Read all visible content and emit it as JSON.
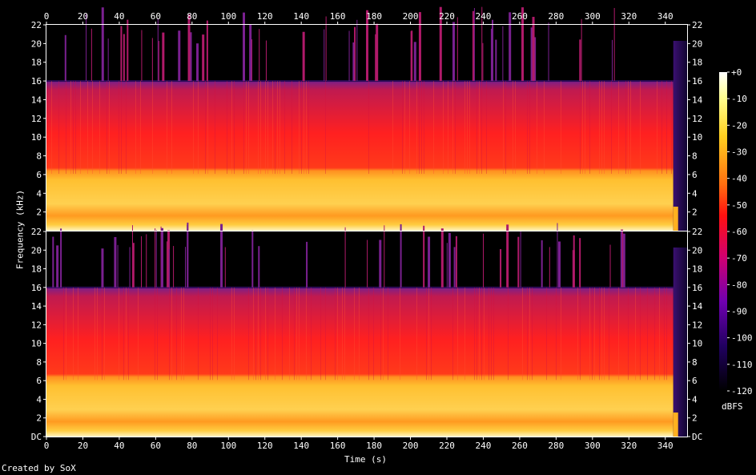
{
  "chart_data": {
    "type": "heatmap",
    "xlabel": "Time (s)",
    "ylabel": "Frequency (kHz)",
    "xlim": [
      0,
      352
    ],
    "x_ticks": [
      "0",
      "20",
      "40",
      "60",
      "80",
      "100",
      "120",
      "140",
      "160",
      "180",
      "200",
      "220",
      "240",
      "260",
      "280",
      "300",
      "320",
      "340"
    ],
    "x_tick_values": [
      0,
      20,
      40,
      60,
      80,
      100,
      120,
      140,
      160,
      180,
      200,
      220,
      240,
      260,
      280,
      300,
      320,
      340
    ],
    "channels": [
      {
        "ylim": [
          0,
          22
        ],
        "y_ticks": [
          "2",
          "4",
          "6",
          "8",
          "10",
          "12",
          "14",
          "16",
          "18",
          "20",
          "22"
        ],
        "y_tick_values": [
          2,
          4,
          6,
          8,
          10,
          12,
          14,
          16,
          18,
          20,
          22
        ],
        "lowpass_cutoff_khz": 16,
        "bright_band_khz": [
          0,
          6
        ]
      },
      {
        "ylim": [
          0,
          22
        ],
        "y_ticks": [
          "DC",
          "2",
          "4",
          "6",
          "8",
          "10",
          "12",
          "14",
          "16",
          "18",
          "20",
          "22"
        ],
        "y_tick_values": [
          0,
          2,
          4,
          6,
          8,
          10,
          12,
          14,
          16,
          18,
          20,
          22
        ],
        "lowpass_cutoff_khz": 16,
        "bright_band_khz": [
          0,
          6
        ]
      }
    ],
    "colorbar": {
      "label": "dBFS",
      "ticks": [
        "+0",
        "-10",
        "-20",
        "-30",
        "-40",
        "-50",
        "-60",
        "-70",
        "-80",
        "-90",
        "-100",
        "-110",
        "-120"
      ],
      "tick_values": [
        0,
        -10,
        -20,
        -30,
        -40,
        -50,
        -60,
        -70,
        -80,
        -90,
        -100,
        -110,
        -120
      ],
      "range": [
        -120,
        0
      ]
    },
    "grid": false,
    "colormap": "sox-spectrogram"
  },
  "footer": "Created by SoX",
  "colors": {
    "background": "#000000",
    "axis": "#ffffff",
    "band_low": "#ffd040",
    "band_mid": "#ff2a1a",
    "band_high": "#b0206a",
    "noise_floor": "#140838"
  }
}
